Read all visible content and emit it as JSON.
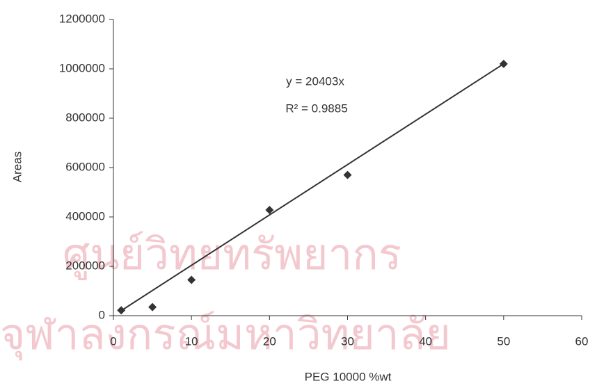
{
  "chart_data": {
    "type": "scatter",
    "x_label": "PEG 10000 %wt",
    "y_label": "Areas",
    "x": [
      1,
      5,
      10,
      20,
      30,
      50
    ],
    "series": [
      {
        "color": "#333333",
        "values": [
          22000,
          35000,
          145000,
          428000,
          570000,
          1020000
        ]
      }
    ],
    "trendline": {
      "slope": 20403,
      "label": "y = 20403x",
      "color": "#333333"
    },
    "annotation": "R² = 0.9885",
    "xlim": [
      0,
      60
    ],
    "xticks": [
      0,
      10,
      20,
      30,
      40,
      50,
      60
    ],
    "ylim": [
      0,
      1200000
    ],
    "yticks": [
      0,
      200000,
      400000,
      600000,
      800000,
      1000000,
      1200000
    ],
    "grid": false,
    "watermark": [
      "ศูนย์วิทยทรัพยากร",
      "จุฬาลงกรณ์มหาวิทยาลัย"
    ]
  }
}
